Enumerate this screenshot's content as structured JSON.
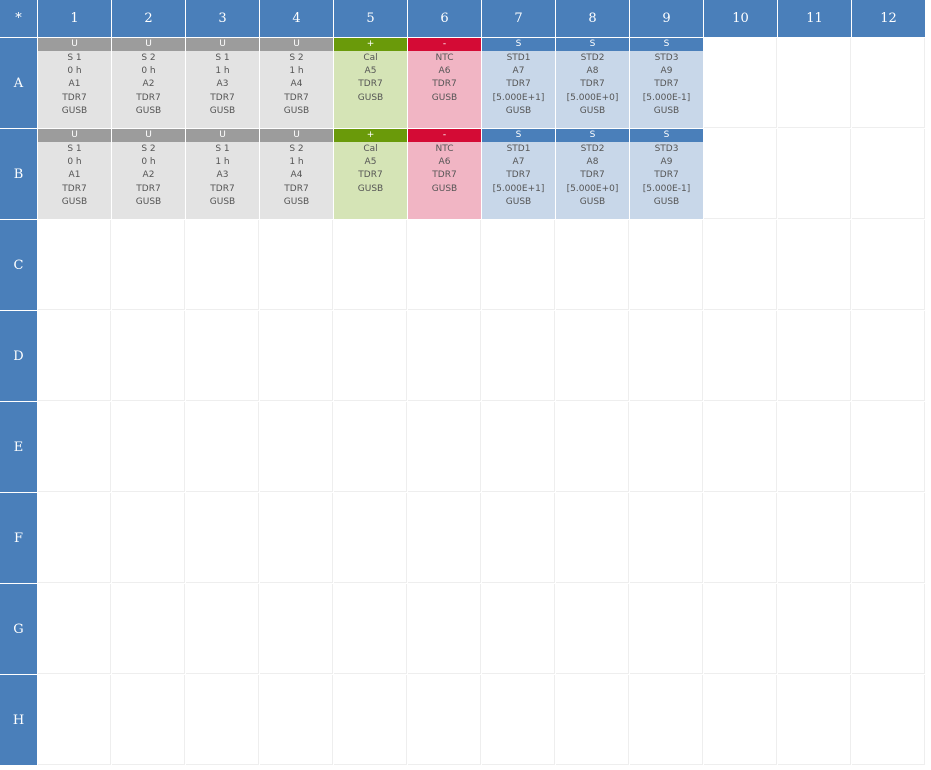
{
  "plate": {
    "corner": "*",
    "columns": [
      "1",
      "2",
      "3",
      "4",
      "5",
      "6",
      "7",
      "8",
      "9",
      "10",
      "11",
      "12"
    ],
    "rows": [
      "A",
      "B",
      "C",
      "D",
      "E",
      "F",
      "G",
      "H"
    ]
  },
  "wells": {
    "A": [
      {
        "type": "U",
        "tag": "U",
        "lines": [
          "S 1",
          "0 h",
          "A1",
          "TDR7",
          "GUSB"
        ]
      },
      {
        "type": "U",
        "tag": "U",
        "lines": [
          "S 2",
          "0 h",
          "A2",
          "TDR7",
          "GUSB"
        ]
      },
      {
        "type": "U",
        "tag": "U",
        "lines": [
          "S 1",
          "1 h",
          "A3",
          "TDR7",
          "GUSB"
        ]
      },
      {
        "type": "U",
        "tag": "U",
        "lines": [
          "S 2",
          "1 h",
          "A4",
          "TDR7",
          "GUSB"
        ]
      },
      {
        "type": "P",
        "tag": "+",
        "lines": [
          "Cal",
          "A5",
          "TDR7",
          "GUSB"
        ]
      },
      {
        "type": "N",
        "tag": "-",
        "lines": [
          "NTC",
          "A6",
          "TDR7",
          "GUSB"
        ]
      },
      {
        "type": "S",
        "tag": "S",
        "lines": [
          "STD1",
          "A7",
          "TDR7",
          "[5.000E+1]",
          "GUSB"
        ]
      },
      {
        "type": "S",
        "tag": "S",
        "lines": [
          "STD2",
          "A8",
          "TDR7",
          "[5.000E+0]",
          "GUSB"
        ]
      },
      {
        "type": "S",
        "tag": "S",
        "lines": [
          "STD3",
          "A9",
          "TDR7",
          "[5.000E-1]",
          "GUSB"
        ]
      }
    ],
    "B": [
      {
        "type": "U",
        "tag": "U",
        "lines": [
          "S 1",
          "0 h",
          "A1",
          "TDR7",
          "GUSB"
        ]
      },
      {
        "type": "U",
        "tag": "U",
        "lines": [
          "S 2",
          "0 h",
          "A2",
          "TDR7",
          "GUSB"
        ]
      },
      {
        "type": "U",
        "tag": "U",
        "lines": [
          "S 1",
          "1 h",
          "A3",
          "TDR7",
          "GUSB"
        ]
      },
      {
        "type": "U",
        "tag": "U",
        "lines": [
          "S 2",
          "1 h",
          "A4",
          "TDR7",
          "GUSB"
        ]
      },
      {
        "type": "P",
        "tag": "+",
        "lines": [
          "Cal",
          "A5",
          "TDR7",
          "GUSB"
        ]
      },
      {
        "type": "N",
        "tag": "-",
        "lines": [
          "NTC",
          "A6",
          "TDR7",
          "GUSB"
        ]
      },
      {
        "type": "S",
        "tag": "S",
        "lines": [
          "STD1",
          "A7",
          "TDR7",
          "[5.000E+1]",
          "GUSB"
        ]
      },
      {
        "type": "S",
        "tag": "S",
        "lines": [
          "STD2",
          "A8",
          "TDR7",
          "[5.000E+0]",
          "GUSB"
        ]
      },
      {
        "type": "S",
        "tag": "S",
        "lines": [
          "STD3",
          "A9",
          "TDR7",
          "[5.000E-1]",
          "GUSB"
        ]
      }
    ]
  },
  "colors": {
    "header_blue": "#4a7fba",
    "unknown_tag": "#9c9c9c",
    "unknown_fill": "#e3e3e3",
    "positive_tag": "#6a9a0a",
    "positive_fill": "#d5e4b6",
    "negative_tag": "#d40b35",
    "negative_fill": "#f1b5c4",
    "standard_tag": "#4a7fba",
    "standard_fill": "#c8d7e9"
  }
}
